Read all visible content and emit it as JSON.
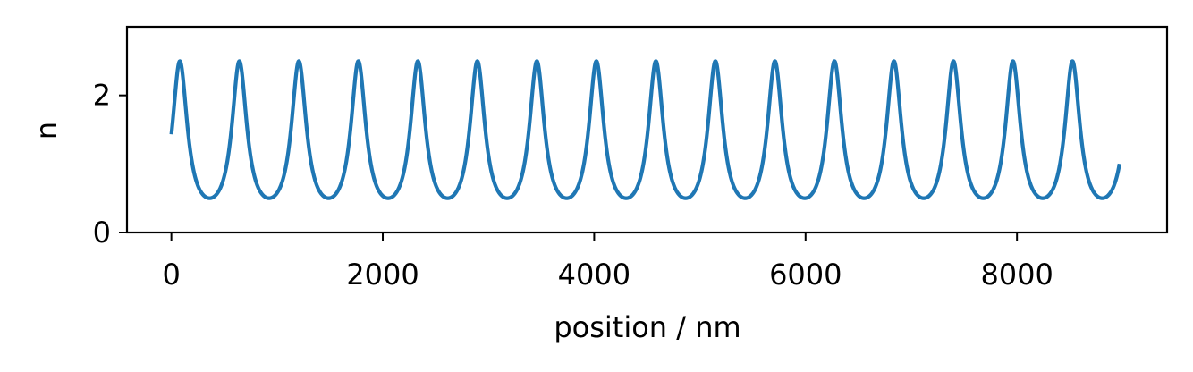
{
  "chart_data": {
    "type": "line",
    "title": "",
    "xlabel": "position / nm",
    "ylabel": "n",
    "xlim": [
      -420,
      9420
    ],
    "ylim": [
      0,
      3
    ],
    "xticks": [
      0,
      2000,
      4000,
      6000,
      8000
    ],
    "xtick_labels": [
      "0",
      "2000",
      "4000",
      "6000",
      "8000"
    ],
    "yticks": [
      0,
      2
    ],
    "ytick_labels": [
      "0",
      "2"
    ],
    "grid": false,
    "series": [
      {
        "color": "#1f77b4",
        "x_start": 0,
        "x_end": 8970,
        "period_nm": 563,
        "peak_value": 2.5,
        "trough_value": 0.5,
        "start_value": 1.47,
        "end_value": 1.02,
        "first_peak_x": 80,
        "num_peaks": 16
      }
    ]
  }
}
